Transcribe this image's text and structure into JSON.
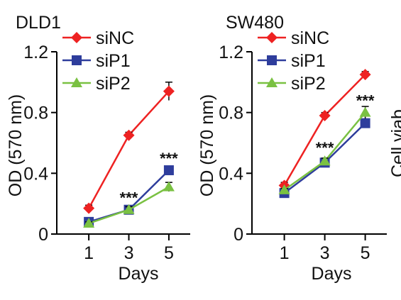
{
  "chart_data": [
    {
      "type": "line",
      "title": "DLD1",
      "xlabel": "Days",
      "ylabel": "OD (570 nm)",
      "x": [
        1,
        3,
        5
      ],
      "xticks": [
        "1",
        "3",
        "5"
      ],
      "ylim": [
        0,
        1.2
      ],
      "yticks": [
        "0",
        "0.4",
        "0.8",
        "1.2"
      ],
      "grid": false,
      "legend": "top-left",
      "series": [
        {
          "name": "siNC",
          "values": [
            0.17,
            0.65,
            0.94
          ],
          "errors": [
            0.02,
            0.02,
            0.06
          ],
          "color": "#ee2222",
          "marker": "diamond"
        },
        {
          "name": "siP1",
          "values": [
            0.08,
            0.16,
            0.42
          ],
          "errors": [
            0.01,
            0.02,
            0.02
          ],
          "color": "#2e3d9c",
          "marker": "square"
        },
        {
          "name": "siP2",
          "values": [
            0.07,
            0.16,
            0.31
          ],
          "errors": [
            0.01,
            0.02,
            0.03
          ],
          "color": "#7ac142",
          "marker": "triangle"
        }
      ],
      "annotations": [
        {
          "x": 3,
          "y": 0.24,
          "text": "***"
        },
        {
          "x": 5,
          "y": 0.5,
          "text": "***"
        }
      ]
    },
    {
      "type": "line",
      "title": "SW480",
      "xlabel": "Days",
      "ylabel": "OD (570 nm)",
      "x": [
        1,
        3,
        5
      ],
      "xticks": [
        "1",
        "3",
        "5"
      ],
      "ylim": [
        0,
        1.2
      ],
      "yticks": [
        "0",
        "0.4",
        "0.8",
        "1.2"
      ],
      "grid": false,
      "legend": "top-left",
      "series": [
        {
          "name": "siNC",
          "values": [
            0.32,
            0.78,
            1.05
          ],
          "errors": [
            0.02,
            0.02,
            0.02
          ],
          "color": "#ee2222",
          "marker": "diamond"
        },
        {
          "name": "siP1",
          "values": [
            0.27,
            0.47,
            0.73
          ],
          "errors": [
            0.01,
            0.01,
            0.02
          ],
          "color": "#2e3d9c",
          "marker": "square"
        },
        {
          "name": "siP2",
          "values": [
            0.29,
            0.48,
            0.8
          ],
          "errors": [
            0.01,
            0.02,
            0.04
          ],
          "color": "#7ac142",
          "marker": "triangle"
        }
      ],
      "annotations": [
        {
          "x": 3,
          "y": 0.57,
          "text": "***"
        },
        {
          "x": 5,
          "y": 0.88,
          "text": "***"
        }
      ]
    }
  ],
  "cut_off_text": "Cell viab"
}
